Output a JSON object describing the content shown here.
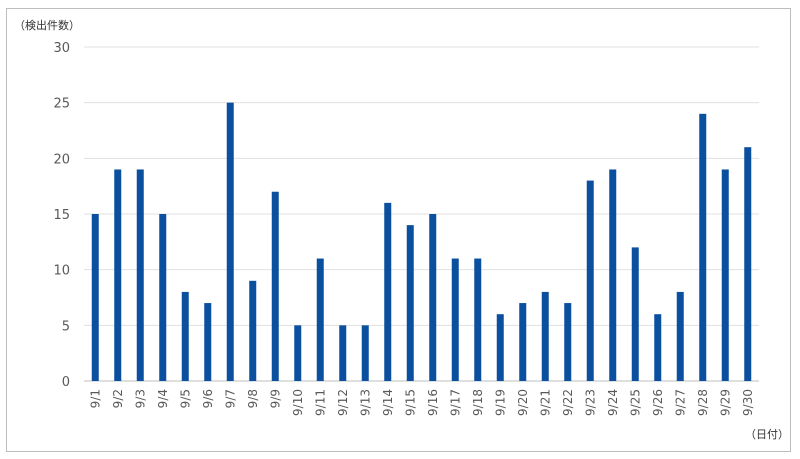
{
  "chart_data": {
    "type": "bar",
    "ylabel": "（検出件数）",
    "xlabel": "（日付）",
    "categories": [
      "9/1",
      "9/2",
      "9/3",
      "9/4",
      "9/5",
      "9/6",
      "9/7",
      "9/8",
      "9/9",
      "9/10",
      "9/11",
      "9/12",
      "9/13",
      "9/14",
      "9/15",
      "9/16",
      "9/17",
      "9/18",
      "9/19",
      "9/20",
      "9/21",
      "9/22",
      "9/23",
      "9/24",
      "9/25",
      "9/26",
      "9/27",
      "9/28",
      "9/29",
      "9/30"
    ],
    "values": [
      15,
      19,
      19,
      15,
      8,
      7,
      25,
      9,
      17,
      5,
      11,
      5,
      5,
      16,
      14,
      15,
      11,
      11,
      6,
      7,
      8,
      7,
      18,
      19,
      12,
      6,
      8,
      24,
      19,
      21
    ],
    "ylim": [
      0,
      30
    ],
    "yticks": [
      0,
      5,
      10,
      15,
      20,
      25,
      30
    ],
    "grid": true,
    "legend": "none",
    "bar_color": "#0b4f9f"
  }
}
